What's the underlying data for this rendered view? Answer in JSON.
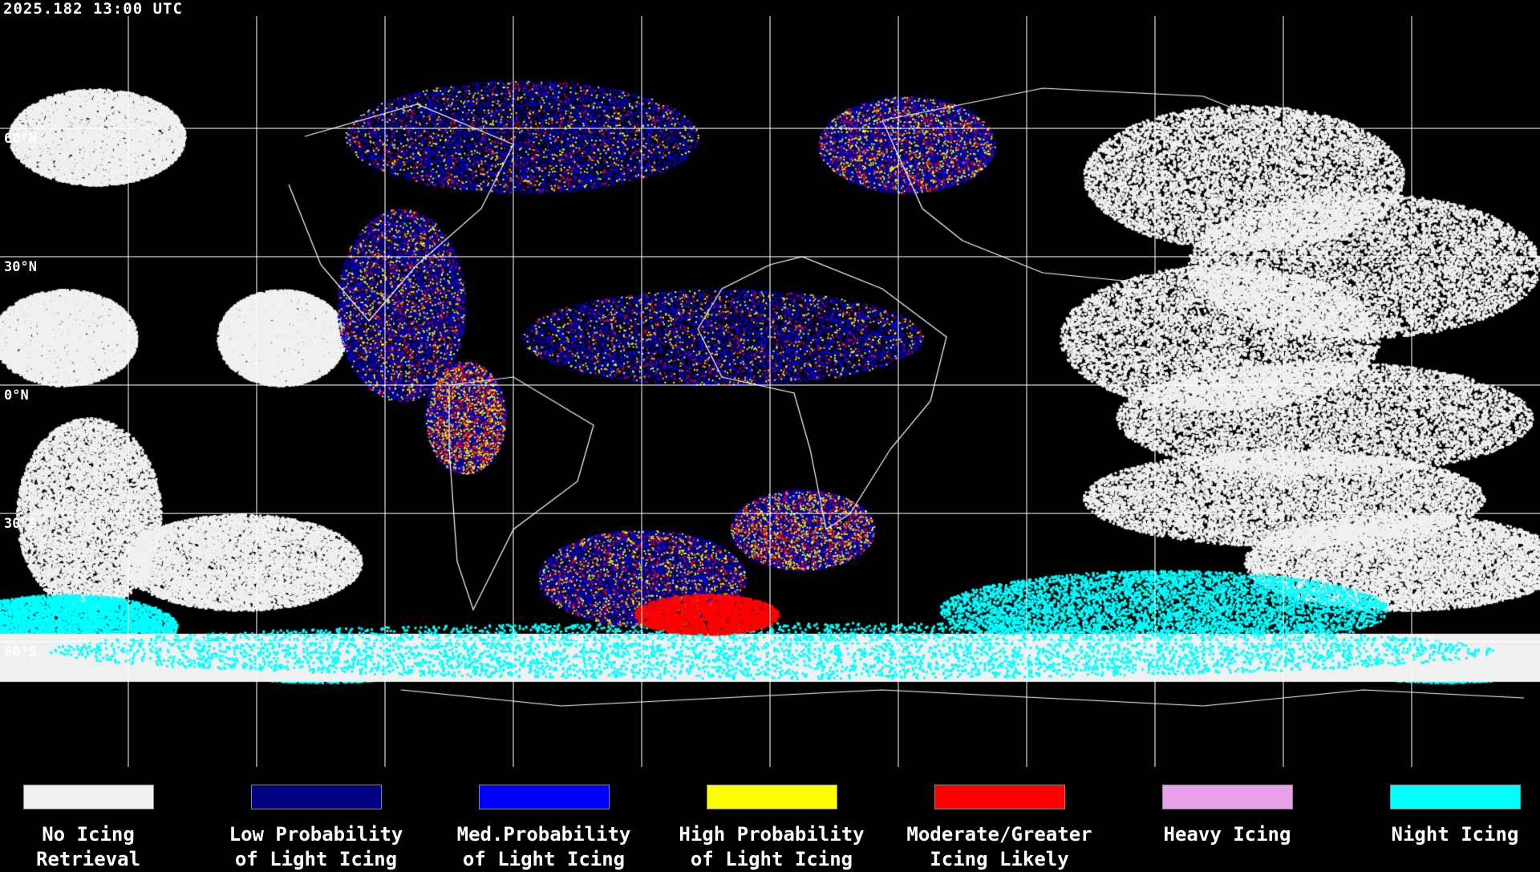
{
  "timestamp": "2025.182 13:00 UTC",
  "latitude_labels": [
    "60°N",
    "30°N",
    "0°N",
    "30°S",
    "60°S"
  ],
  "legend": [
    {
      "line1": "No Icing",
      "line2": "Retrieval",
      "color": "#f0f0f0"
    },
    {
      "line1": "Low Probability",
      "line2": "of Light Icing",
      "color": "#000080"
    },
    {
      "line1": "Med.Probability",
      "line2": "of Light Icing",
      "color": "#0000ff"
    },
    {
      "line1": "High Probability",
      "line2": "of Light Icing",
      "color": "#ffff00"
    },
    {
      "line1": "Moderate/Greater",
      "line2": "Icing Likely",
      "color": "#ff0000"
    },
    {
      "line1": "Heavy Icing",
      "line2": "",
      "color": "#e8a0e8"
    },
    {
      "line1": "Night Icing",
      "line2": "",
      "color": "#00ffff"
    }
  ]
}
